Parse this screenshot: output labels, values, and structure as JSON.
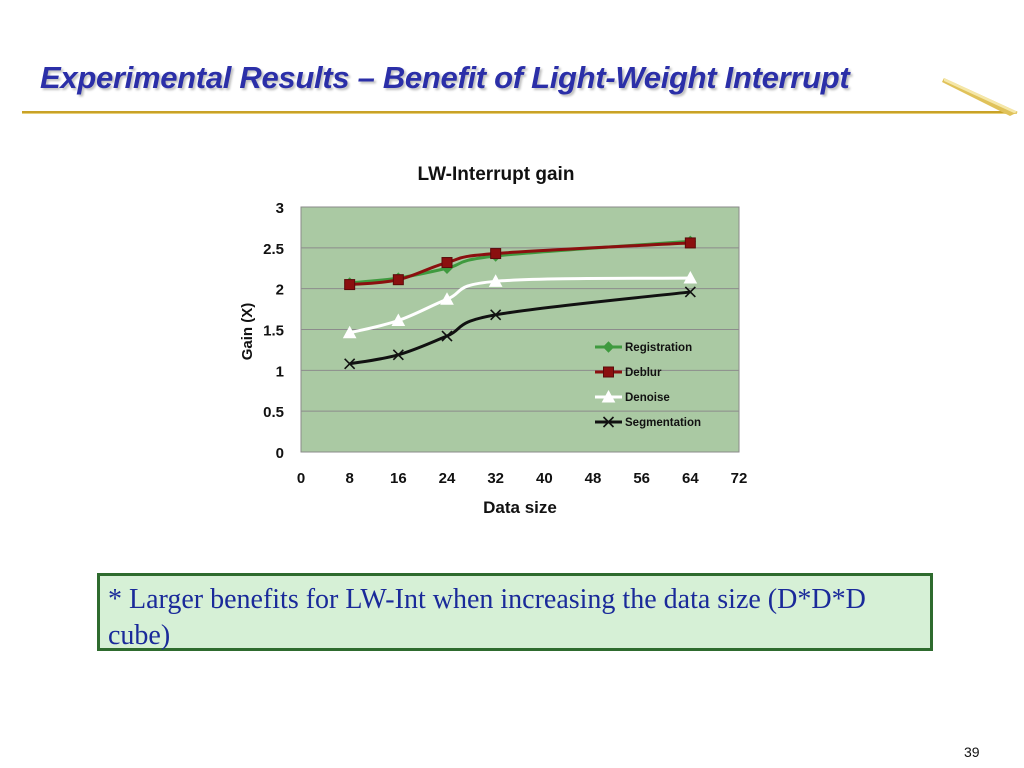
{
  "slide": {
    "title": "Experimental Results – Benefit of Light-Weight Interrupt",
    "note": "* Larger benefits for LW-Int when increasing the data size (D*D*D cube)",
    "page_number": "39",
    "colors": {
      "title": "#2b2fa8",
      "rule": "#c9a227",
      "note_background": "#d6f0d6",
      "note_border": "#2e6b2e",
      "note_text": "#1a2a9a"
    }
  },
  "chart_data": {
    "type": "line",
    "title": "LW-Interrupt gain",
    "xlabel": "Data size",
    "ylabel": "Gain (X)",
    "xlim": [
      0,
      72
    ],
    "ylim": [
      0,
      3
    ],
    "xticks": [
      "0",
      "8",
      "16",
      "24",
      "32",
      "40",
      "48",
      "56",
      "64",
      "72"
    ],
    "yticks": [
      "0",
      "0.5",
      "1",
      "1.5",
      "2",
      "2.5",
      "3"
    ],
    "grid": "horizontal",
    "plot_background": "#aac9a3",
    "legend_position": "inside-right",
    "series": [
      {
        "name": "Registration",
        "marker": "diamond",
        "color": "#3f9a3f",
        "x": [
          8,
          16,
          24,
          32,
          64
        ],
        "y": [
          2.07,
          2.13,
          2.25,
          2.4,
          2.58
        ]
      },
      {
        "name": "Deblur",
        "marker": "square",
        "color": "#8b0f0f",
        "x": [
          8,
          16,
          24,
          32,
          64
        ],
        "y": [
          2.05,
          2.11,
          2.32,
          2.43,
          2.56
        ]
      },
      {
        "name": "Denoise",
        "marker": "triangle",
        "color": "#ffffff",
        "x": [
          8,
          16,
          24,
          32,
          64
        ],
        "y": [
          1.46,
          1.61,
          1.87,
          2.09,
          2.13
        ]
      },
      {
        "name": "Segmentation",
        "marker": "x",
        "color": "#111111",
        "x": [
          8,
          16,
          24,
          32,
          64
        ],
        "y": [
          1.08,
          1.19,
          1.42,
          1.68,
          1.96
        ]
      }
    ]
  }
}
